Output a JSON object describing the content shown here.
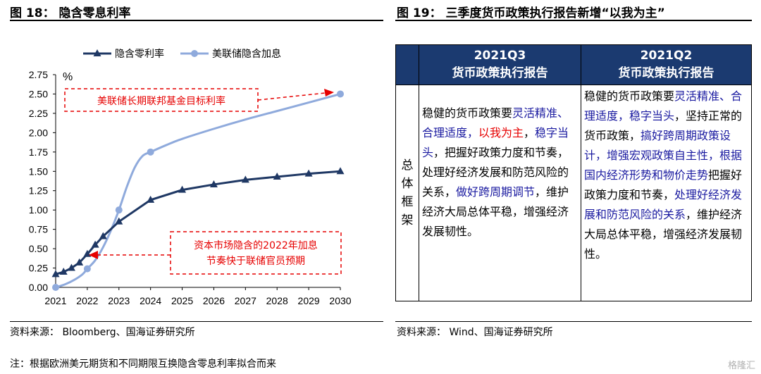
{
  "left_panel": {
    "title": "图 18：  隐含零息利率",
    "source": "资料来源：  Bloomberg、国海证券研究所",
    "note": "注：根据欧洲美元期货和不同期限互换隐含零息利率拟合而来"
  },
  "right_panel": {
    "title": "图 19：  三季度货币政策执行报告新增“以我为主”",
    "source": "资料来源：  Wind、国海证券研究所"
  },
  "chart_data": {
    "type": "line",
    "ylabel": "%",
    "xlim": [
      2021,
      2030
    ],
    "ylim": [
      0,
      2.75
    ],
    "yticks": [
      "0.00",
      "0.25",
      "0.50",
      "0.75",
      "1.00",
      "1.25",
      "1.50",
      "1.75",
      "2.00",
      "2.25",
      "2.50",
      "2.75"
    ],
    "xticks": [
      "2021",
      "2022",
      "2023",
      "2024",
      "2025",
      "2026",
      "2027",
      "2028",
      "2029",
      "2030"
    ],
    "legend_position": "top",
    "series": [
      {
        "name": "隐含零利率",
        "color": "#1f3864",
        "marker": "triangle",
        "x": [
          2021.0,
          2021.25,
          2021.5,
          2021.75,
          2022.0,
          2022.25,
          2022.5,
          2023.0,
          2024.0,
          2025.0,
          2026.0,
          2027.0,
          2028.0,
          2029.0,
          2030.0
        ],
        "y": [
          0.17,
          0.2,
          0.25,
          0.32,
          0.43,
          0.55,
          0.66,
          0.85,
          1.13,
          1.26,
          1.33,
          1.39,
          1.43,
          1.47,
          1.5
        ]
      },
      {
        "name": "美联储隐含加息",
        "color": "#8faadc",
        "marker": "circle",
        "marker_x": [
          2021.0,
          2022.0,
          2023.0,
          2024.0,
          2030.0
        ],
        "x": [
          2021.0,
          2021.3,
          2021.6,
          2021.85,
          2022.0,
          2022.25,
          2022.5,
          2022.75,
          2023.0,
          2023.25,
          2023.5,
          2023.75,
          2024.0,
          2024.5,
          2025.0,
          2026.0,
          2027.0,
          2028.0,
          2029.0,
          2030.0
        ],
        "y": [
          0.0,
          0.04,
          0.1,
          0.17,
          0.24,
          0.35,
          0.52,
          0.74,
          1.0,
          1.3,
          1.55,
          1.7,
          1.75,
          1.84,
          1.92,
          2.05,
          2.17,
          2.28,
          2.39,
          2.5
        ]
      }
    ],
    "annotations": [
      {
        "text": "美联储长期联邦基金目标利率",
        "color": "#e60000"
      },
      {
        "text_lines": [
          "资本市场隐含的2022年加息",
          "节奏快于联储官员预期"
        ],
        "color": "#e60000"
      }
    ]
  },
  "table": {
    "headers": [
      [
        "2021Q3",
        "货币政策执行报告"
      ],
      [
        "2021Q2",
        "货币政策执行报告"
      ]
    ],
    "row_label": [
      "总",
      "体",
      "框",
      "架"
    ],
    "col1": [
      {
        "t": "稳健的货币政策要",
        "c": ""
      },
      {
        "t": "灵活精准、合理适度，",
        "c": "blue"
      },
      {
        "t": "以我为主",
        "c": "red"
      },
      {
        "t": "，",
        "c": ""
      },
      {
        "t": "稳字当头",
        "c": "blue"
      },
      {
        "t": "，把握好政策力度和节奏，处理好经济发展和防范风险的关系，",
        "c": ""
      },
      {
        "t": "做好跨周期调节",
        "c": "blue"
      },
      {
        "t": "，维护经济大局总体平稳，增强经济发展韧性。",
        "c": ""
      }
    ],
    "col2": [
      {
        "t": "稳健的货币政策要",
        "c": ""
      },
      {
        "t": "灵活精准、合理适度，稳字当头",
        "c": "blue"
      },
      {
        "t": "，坚持正常的货币政策，",
        "c": ""
      },
      {
        "t": "搞好跨周期政策设计，增强宏观政策自主性，根据国内经济形势和物价走势",
        "c": "blue"
      },
      {
        "t": "把握好政策力度和节奏，",
        "c": ""
      },
      {
        "t": "处理好经济发展和防范风险的关系",
        "c": "blue"
      },
      {
        "t": "，维护经济大局总体平稳，增强经济发展韧性。",
        "c": ""
      }
    ]
  },
  "watermark": "格隆汇"
}
